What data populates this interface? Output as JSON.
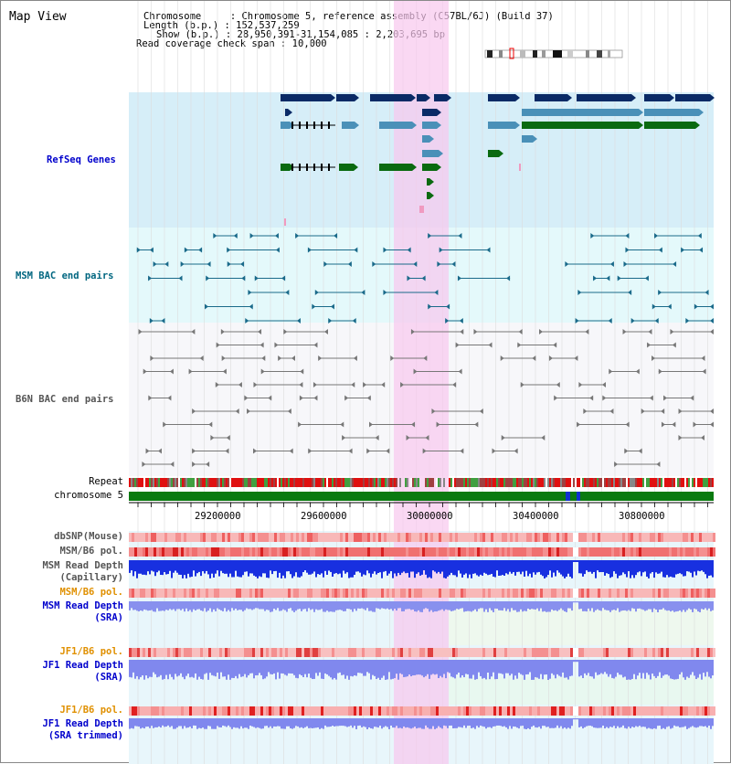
{
  "title": "Map View",
  "info": {
    "chromosome": "Chromosome     : Chromosome 5, reference assembly (C57BL/6J) (Build 37)",
    "length": "Length (b.p.) : 152,537,259",
    "show": "Show (b.p.) : 28,950,391-31,154,085 : 2,203,695 bp",
    "coverage": "Read coverage check span : 10,000"
  },
  "tracks": {
    "refseq": "RefSeq Genes",
    "msm_bac": "MSM BAC end pairs",
    "b6n_bac": "B6N BAC end pairs",
    "repeat": "Repeat",
    "chromosome": "chromosome 5",
    "dbsnp": "dbSNP(Mouse)",
    "msm_b6_pol": "MSM/B6 pol.",
    "msm_depth_cap_1": "MSM Read Depth",
    "msm_depth_cap_2": "(Capillary)",
    "msm_b6_pol_2": "MSM/B6 pol.",
    "msm_depth_sra_1": "MSM Read Depth",
    "msm_depth_sra_2": "(SRA)",
    "jf1_b6_pol": "JF1/B6 pol.",
    "jf1_depth_sra_1": "JF1 Read Depth",
    "jf1_depth_sra_2": "(SRA)",
    "jf1_b6_pol_2": "JF1/B6 pol.",
    "jf1_depth_trim_1": "JF1 Read Depth",
    "jf1_depth_trim_2": "(SRA trimmed)"
  },
  "axis": {
    "ticks": [
      "29200000",
      "29600000",
      "30000000",
      "30400000",
      "30800000"
    ]
  },
  "colors": {
    "refseq_bg": "#d6eef8",
    "msm_bg": "#e4f9fb",
    "b6n_bg": "#f5f5f8",
    "highlight": "#f8d8f0",
    "label_blue": "#0000cc",
    "label_teal": "#006680",
    "label_orange": "#e09000",
    "label_gray": "#555555",
    "gene_dark": "#0a2a66",
    "gene_mid": "#4a90b8",
    "gene_green": "#0a6a10",
    "depth_capillary": "#1020e0",
    "depth_sra": "#8088ee"
  }
}
